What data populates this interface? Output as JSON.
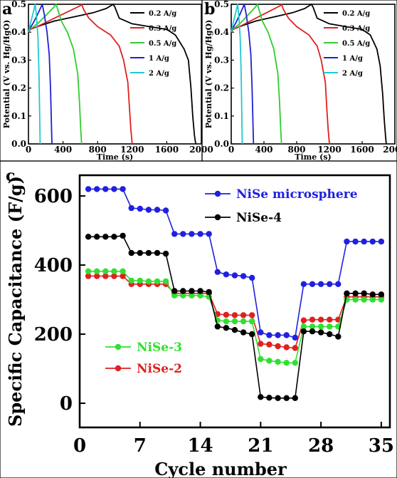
{
  "chart_data": [
    {
      "panel": "a",
      "type": "line",
      "xlabel": "Time (s)",
      "ylabel": "Potential (V vs. Hg/HgO)",
      "xlim": [
        0,
        2000
      ],
      "ylim": [
        0,
        0.5
      ],
      "xticks": [
        "0",
        "400",
        "800",
        "1200",
        "1600",
        "2000"
      ],
      "yticks": [
        "0.0",
        "0.1",
        "0.2",
        "0.3",
        "0.4",
        "0.5"
      ],
      "grid": false,
      "legend_position": "right",
      "series": [
        {
          "name": "0.2 A/g",
          "color": "#000000",
          "x": [
            0,
            20,
            60,
            150,
            300,
            450,
            600,
            750,
            900,
            980,
            1000,
            1050,
            1200,
            1400,
            1600,
            1700,
            1800,
            1850,
            1880,
            1900,
            1920,
            1935
          ],
          "y": [
            0.4,
            0.41,
            0.415,
            0.425,
            0.44,
            0.45,
            0.46,
            0.47,
            0.485,
            0.5,
            0.49,
            0.45,
            0.43,
            0.42,
            0.41,
            0.39,
            0.34,
            0.3,
            0.2,
            0.1,
            0.03,
            0.0
          ]
        },
        {
          "name": "0.3 A/g",
          "color": "#e02020",
          "x": [
            0,
            20,
            100,
            200,
            300,
            400,
            500,
            600,
            615,
            640,
            700,
            800,
            950,
            1050,
            1100,
            1150,
            1170,
            1185,
            1200
          ],
          "y": [
            0.4,
            0.41,
            0.42,
            0.435,
            0.45,
            0.465,
            0.48,
            0.495,
            0.5,
            0.48,
            0.45,
            0.42,
            0.39,
            0.35,
            0.3,
            0.22,
            0.12,
            0.05,
            0.0
          ]
        },
        {
          "name": "0.5 A/g",
          "color": "#30cc30",
          "x": [
            0,
            15,
            60,
            120,
            200,
            280,
            320,
            340,
            380,
            450,
            520,
            570,
            590,
            605,
            615
          ],
          "y": [
            0.4,
            0.41,
            0.42,
            0.435,
            0.46,
            0.485,
            0.5,
            0.48,
            0.44,
            0.4,
            0.34,
            0.25,
            0.15,
            0.05,
            0.0
          ]
        },
        {
          "name": "1 A/g",
          "color": "#2020d0",
          "x": [
            0,
            10,
            50,
            100,
            145,
            160,
            185,
            215,
            240,
            255,
            265,
            272
          ],
          "y": [
            0.4,
            0.41,
            0.43,
            0.46,
            0.49,
            0.5,
            0.46,
            0.4,
            0.32,
            0.2,
            0.08,
            0.0
          ]
        },
        {
          "name": "2 A/g",
          "color": "#20c8d0",
          "x": [
            0,
            8,
            30,
            55,
            70,
            78,
            92,
            110,
            122,
            130,
            135
          ],
          "y": [
            0.4,
            0.41,
            0.44,
            0.47,
            0.49,
            0.5,
            0.46,
            0.38,
            0.25,
            0.1,
            0.0
          ]
        }
      ]
    },
    {
      "panel": "b",
      "type": "line",
      "xlabel": "Time (s)",
      "ylabel": "Potential (V vs. Hg/HgO)",
      "xlim": [
        0,
        2000
      ],
      "ylim": [
        0,
        0.5
      ],
      "xticks": [
        "0",
        "400",
        "800",
        "1200",
        "1600",
        "2000"
      ],
      "yticks": [
        "0.0",
        "0.1",
        "0.2",
        "0.3",
        "0.4",
        "0.5"
      ],
      "grid": false,
      "legend_position": "right",
      "series": [
        {
          "name": "0.2 A/g",
          "color": "#000000",
          "x": [
            0,
            20,
            60,
            150,
            300,
            450,
            600,
            750,
            900,
            980,
            1000,
            1050,
            1200,
            1400,
            1600,
            1700,
            1780,
            1820,
            1850,
            1870,
            1885,
            1895
          ],
          "y": [
            0.4,
            0.41,
            0.415,
            0.425,
            0.44,
            0.45,
            0.46,
            0.47,
            0.485,
            0.5,
            0.49,
            0.45,
            0.43,
            0.42,
            0.41,
            0.39,
            0.34,
            0.28,
            0.18,
            0.09,
            0.03,
            0.0
          ]
        },
        {
          "name": "0.3 A/g",
          "color": "#e02020",
          "x": [
            0,
            20,
            100,
            200,
            300,
            400,
            500,
            600,
            615,
            640,
            700,
            800,
            950,
            1050,
            1100,
            1150,
            1170,
            1185,
            1200
          ],
          "y": [
            0.4,
            0.41,
            0.42,
            0.435,
            0.45,
            0.465,
            0.48,
            0.495,
            0.5,
            0.48,
            0.45,
            0.42,
            0.39,
            0.35,
            0.3,
            0.22,
            0.12,
            0.05,
            0.0
          ]
        },
        {
          "name": "0.5 A/g",
          "color": "#30cc30",
          "x": [
            0,
            15,
            60,
            120,
            200,
            280,
            320,
            340,
            380,
            450,
            520,
            570,
            590,
            605,
            615
          ],
          "y": [
            0.4,
            0.41,
            0.42,
            0.435,
            0.46,
            0.485,
            0.5,
            0.48,
            0.44,
            0.4,
            0.34,
            0.25,
            0.15,
            0.05,
            0.0
          ]
        },
        {
          "name": "1 A/g",
          "color": "#2020d0",
          "x": [
            0,
            10,
            50,
            100,
            145,
            160,
            185,
            215,
            240,
            255,
            265,
            272
          ],
          "y": [
            0.4,
            0.41,
            0.43,
            0.46,
            0.49,
            0.5,
            0.46,
            0.4,
            0.32,
            0.2,
            0.08,
            0.0
          ]
        },
        {
          "name": "2 A/g",
          "color": "#20c8d0",
          "x": [
            0,
            8,
            30,
            55,
            70,
            78,
            92,
            110,
            122,
            130,
            135
          ],
          "y": [
            0.4,
            0.41,
            0.44,
            0.47,
            0.49,
            0.5,
            0.46,
            0.38,
            0.25,
            0.1,
            0.0
          ]
        }
      ]
    },
    {
      "panel": "c",
      "type": "line",
      "xlabel": "Cycle number",
      "ylabel": "Specific Capacitance (F/g)",
      "xlim": [
        0,
        36
      ],
      "ylim": [
        -70,
        660
      ],
      "xticks": [
        "0",
        "7",
        "14",
        "21",
        "28",
        "35"
      ],
      "yticks": [
        "0",
        "200",
        "400",
        "600"
      ],
      "grid": false,
      "markers": "circle",
      "series": [
        {
          "name": "NiSe microsphere",
          "color": "#2020e0",
          "x": [
            1,
            2,
            3,
            4,
            5,
            6,
            7,
            8,
            9,
            10,
            11,
            12,
            13,
            14,
            15,
            16,
            17,
            18,
            19,
            20,
            21,
            22,
            23,
            24,
            25,
            26,
            27,
            28,
            29,
            30,
            31,
            32,
            33,
            34,
            35
          ],
          "y": [
            620,
            620,
            620,
            620,
            620,
            565,
            563,
            560,
            560,
            558,
            490,
            490,
            490,
            490,
            490,
            380,
            373,
            370,
            368,
            363,
            205,
            197,
            197,
            197,
            190,
            345,
            345,
            345,
            345,
            345,
            468,
            468,
            468,
            468,
            468
          ]
        },
        {
          "name": "NiSe-4",
          "color": "#000000",
          "x": [
            1,
            2,
            3,
            4,
            5,
            6,
            7,
            8,
            9,
            10,
            11,
            12,
            13,
            14,
            15,
            16,
            17,
            18,
            19,
            20,
            21,
            22,
            23,
            24,
            25,
            26,
            27,
            28,
            29,
            30,
            31,
            32,
            33,
            34,
            35
          ],
          "y": [
            482,
            482,
            482,
            482,
            485,
            435,
            435,
            435,
            435,
            433,
            325,
            325,
            325,
            325,
            322,
            222,
            218,
            212,
            205,
            200,
            18,
            16,
            15,
            15,
            15,
            208,
            208,
            205,
            200,
            193,
            318,
            318,
            318,
            315,
            315
          ]
        },
        {
          "name": "NiSe-3",
          "color": "#30e030",
          "x": [
            1,
            2,
            3,
            4,
            5,
            6,
            7,
            8,
            9,
            10,
            11,
            12,
            13,
            14,
            15,
            16,
            17,
            18,
            19,
            20,
            21,
            22,
            23,
            24,
            25,
            26,
            27,
            28,
            29,
            30,
            31,
            32,
            33,
            34,
            35
          ],
          "y": [
            382,
            382,
            382,
            382,
            382,
            355,
            355,
            353,
            353,
            353,
            312,
            312,
            312,
            312,
            308,
            240,
            237,
            237,
            237,
            237,
            128,
            123,
            120,
            117,
            117,
            222,
            222,
            222,
            222,
            222,
            300,
            300,
            300,
            300,
            300
          ]
        },
        {
          "name": "NiSe-2",
          "color": "#e02020",
          "x": [
            1,
            2,
            3,
            4,
            5,
            6,
            7,
            8,
            9,
            10,
            11,
            12,
            13,
            14,
            15,
            16,
            17,
            18,
            19,
            20,
            21,
            22,
            23,
            24,
            25,
            26,
            27,
            28,
            29,
            30,
            31,
            32,
            33,
            34,
            35
          ],
          "y": [
            368,
            368,
            368,
            368,
            368,
            345,
            345,
            345,
            345,
            345,
            318,
            318,
            318,
            318,
            318,
            258,
            256,
            255,
            255,
            255,
            172,
            170,
            165,
            162,
            160,
            240,
            242,
            242,
            242,
            242,
            308,
            308,
            308,
            308,
            308
          ]
        }
      ]
    }
  ]
}
